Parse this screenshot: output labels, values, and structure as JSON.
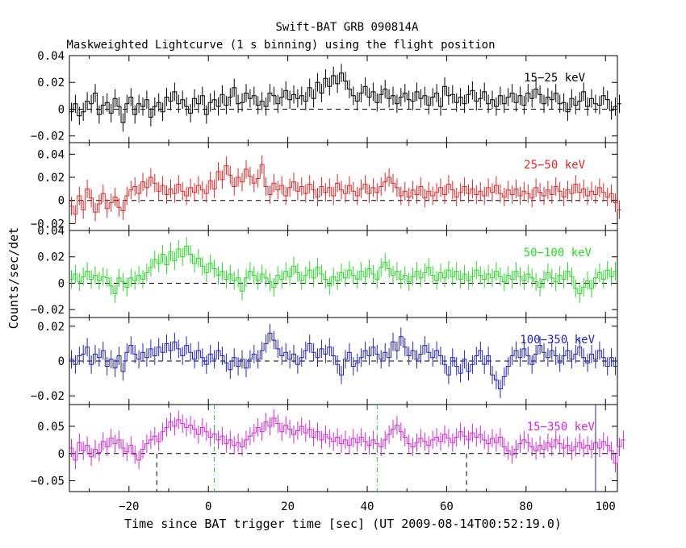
{
  "chart_data": {
    "type": "line",
    "title": "Swift-BAT GRB 090814A",
    "subtitle": "Maskweighted Lightcurve (1 s binning) using the flight position",
    "xlabel": "Time since BAT trigger time [sec] (UT 2009-08-14T00:52:19.0)",
    "ylabel": "Counts/sec/det",
    "xlim": [
      -35,
      103
    ],
    "xticks": [
      -20,
      0,
      20,
      40,
      60,
      80,
      100
    ],
    "xtick_labels": [
      "−20",
      "0",
      "20",
      "40",
      "60",
      "80",
      "100"
    ],
    "grid": false,
    "panels": [
      {
        "name": "15−25 keV",
        "color": "#000000",
        "ylim": [
          -0.025,
          0.04
        ],
        "yticks": [
          -0.02,
          0,
          0.02,
          0.04
        ],
        "ytick_labels": [
          "−0.02",
          "0",
          "0.02",
          "0.04"
        ],
        "x_start": -35,
        "bin": 1,
        "values": [
          -0.002,
          0.004,
          -0.005,
          -0.002,
          0.006,
          0.004,
          0.012,
          -0.004,
          0.003,
          0.005,
          -0.003,
          0.008,
          0.002,
          -0.01,
          0.004,
          0.009,
          -0.004,
          0.004,
          0.002,
          0.007,
          -0.006,
          0.002,
          0.005,
          -0.002,
          0.009,
          0.006,
          0.013,
          0.004,
          0.007,
          0.002,
          -0.003,
          0.008,
          0.004,
          0.01,
          -0.004,
          0.005,
          0.007,
          0.002,
          0.011,
          0.003,
          0.009,
          0.016,
          0.004,
          0.005,
          0.012,
          0.008,
          0.01,
          0.003,
          0.006,
          0.002,
          0.012,
          0.01,
          0.004,
          0.009,
          0.014,
          0.007,
          0.011,
          0.008,
          0.01,
          0.006,
          0.016,
          0.008,
          0.02,
          0.012,
          0.023,
          0.017,
          0.025,
          0.019,
          0.027,
          0.021,
          0.015,
          0.01,
          0.006,
          0.012,
          0.017,
          0.009,
          0.013,
          0.005,
          0.011,
          0.015,
          0.008,
          0.01,
          0.004,
          0.009,
          0.012,
          0.007,
          0.006,
          0.013,
          0.008,
          0.01,
          0.003,
          0.009,
          0.012,
          0.002,
          0.017,
          0.01,
          0.011,
          0.005,
          0.009,
          0.004,
          0.011,
          0.014,
          0.006,
          0.008,
          0.013,
          0.004,
          0.007,
          0.002,
          0.01,
          0.004,
          0.009,
          0.012,
          0.005,
          0.01,
          0.003,
          0.012,
          0.008,
          0.015,
          0.011,
          0.004,
          0.009,
          0.007,
          0.012,
          0.004,
          0.005,
          -0.002,
          0.008,
          0.003,
          0.006,
          0.013,
          0.002,
          0.008,
          0.004,
          0.003,
          0.01,
          0.007,
          -0.001,
          0.002,
          0.004
        ]
      },
      {
        "name": "25−50 keV",
        "color": "#ee2222",
        "ylim": [
          -0.026,
          0.05
        ],
        "yticks": [
          -0.02,
          0,
          0.02,
          0.04
        ],
        "ytick_labels": [
          "−0.02",
          "0",
          "0.02",
          "0.04"
        ],
        "x_start": -35,
        "bin": 1,
        "values": [
          -0.005,
          -0.012,
          0.004,
          -0.008,
          0.01,
          0.002,
          -0.01,
          -0.003,
          0.006,
          -0.007,
          -0.002,
          0.003,
          -0.006,
          -0.009,
          0.004,
          0.009,
          0.012,
          0.006,
          0.016,
          0.011,
          0.02,
          0.015,
          0.008,
          0.013,
          0.005,
          0.01,
          0.006,
          0.014,
          0.008,
          0.004,
          0.011,
          0.007,
          0.013,
          0.009,
          0.006,
          0.017,
          0.01,
          0.025,
          0.018,
          0.03,
          0.022,
          0.012,
          0.02,
          0.016,
          0.027,
          0.021,
          0.015,
          0.019,
          0.031,
          0.012,
          0.005,
          0.015,
          0.009,
          0.013,
          0.004,
          0.011,
          0.016,
          0.008,
          0.012,
          0.006,
          0.014,
          0.009,
          0.003,
          0.012,
          0.007,
          0.011,
          0.004,
          0.015,
          0.009,
          0.006,
          0.013,
          0.008,
          0.004,
          0.01,
          0.014,
          0.006,
          0.011,
          0.007,
          0.012,
          0.016,
          0.02,
          0.015,
          0.011,
          0.004,
          0.008,
          0.003,
          0.009,
          0.005,
          0.012,
          0.002,
          0.008,
          0.004,
          0.007,
          0.011,
          0.005,
          0.014,
          0.009,
          0.003,
          0.007,
          0.012,
          0.006,
          0.01,
          0.005,
          0.008,
          0.004,
          0.011,
          0.007,
          0.013,
          0.006,
          0.003,
          0.009,
          0.005,
          0.01,
          0.004,
          0.008,
          0.006,
          0.002,
          0.011,
          0.007,
          0.004,
          0.009,
          0.005,
          0.012,
          0.008,
          0.003,
          0.009,
          0.006,
          0.014,
          0.007,
          0.01,
          0.004,
          0.008,
          0.005,
          0.011,
          0.007,
          0.003,
          0.006,
          -0.002,
          -0.008
        ]
      },
      {
        "name": "50−100 keV",
        "color": "#22dd22",
        "ylim": [
          -0.026,
          0.04
        ],
        "yticks": [
          -0.02,
          0,
          0.02,
          0.04
        ],
        "ytick_labels": [
          "−0.02",
          "0",
          "0.02",
          "0.04"
        ],
        "x_start": -35,
        "bin": 1,
        "values": [
          0.003,
          0.007,
          0.001,
          0.005,
          0.009,
          0.003,
          0.006,
          0.002,
          0.005,
          0.004,
          -0.002,
          -0.008,
          0.004,
          0.001,
          -0.003,
          0.004,
          0.002,
          0.006,
          0.003,
          0.008,
          0.012,
          0.018,
          0.015,
          0.022,
          0.014,
          0.024,
          0.017,
          0.026,
          0.02,
          0.028,
          0.022,
          0.015,
          0.019,
          0.013,
          0.008,
          0.015,
          0.011,
          0.006,
          0.009,
          0.003,
          0.007,
          0.002,
          0.004,
          -0.006,
          0.004,
          0.009,
          0.006,
          0.002,
          0.007,
          0.004,
          0.001,
          -0.003,
          0.006,
          0.003,
          0.009,
          0.005,
          0.013,
          0.008,
          0.002,
          0.006,
          0.01,
          0.004,
          0.012,
          0.007,
          0.003,
          -0.002,
          0.005,
          0.002,
          0.008,
          0.004,
          0.01,
          0.006,
          0.003,
          0.009,
          0.005,
          0.011,
          0.007,
          0.003,
          0.012,
          0.016,
          0.011,
          0.006,
          0.009,
          0.003,
          0.006,
          0.001,
          0.005,
          0.009,
          0.004,
          0.008,
          0.012,
          0.006,
          0.002,
          0.008,
          0.004,
          0.01,
          0.005,
          0.009,
          0.003,
          0.007,
          0.002,
          0.005,
          0.01,
          0.006,
          0.003,
          0.007,
          0.004,
          0.009,
          0.005,
          0.001,
          0.006,
          0.003,
          0.009,
          0.005,
          0.002,
          0.007,
          0.004,
          0.001,
          -0.003,
          0.003,
          0.008,
          0.004,
          0.001,
          0.006,
          0.003,
          0.009,
          0.005,
          -0.004,
          -0.008,
          -0.003,
          0.002,
          -0.004,
          0.004,
          0.008,
          0.003,
          0.01,
          0.005,
          0.009
        ]
      },
      {
        "name": "100−350 keV",
        "color": "#2222cc",
        "ylim": [
          -0.025,
          0.025
        ],
        "yticks": [
          -0.02,
          0,
          0.02
        ],
        "ytick_labels": [
          "−0.02",
          "0",
          "0.02"
        ],
        "x_start": -35,
        "bin": 1,
        "values": [
          0.001,
          -0.002,
          0.003,
          0.004,
          0.008,
          -0.002,
          0.004,
          0.002,
          0.006,
          -0.003,
          0.001,
          -0.004,
          0.003,
          -0.006,
          0.005,
          0.009,
          0.004,
          0.001,
          0.005,
          0.002,
          0.007,
          0.003,
          0.008,
          0.005,
          0.01,
          0.006,
          0.011,
          0.007,
          0.003,
          0.009,
          0.005,
          0.001,
          0.006,
          0.002,
          -0.002,
          0.004,
          0.001,
          0.006,
          0.003,
          -0.001,
          -0.005,
          0.002,
          -0.003,
          0.001,
          -0.004,
          0.001,
          0.004,
          0.001,
          0.006,
          0.01,
          0.016,
          0.012,
          0.007,
          0.003,
          0.005,
          0.001,
          0.004,
          -0.002,
          0.002,
          0.006,
          0.01,
          0.005,
          0.002,
          0.007,
          0.004,
          0.008,
          0.003,
          -0.002,
          -0.008,
          0.001,
          0.005,
          -0.003,
          -0.001,
          0.002,
          0.006,
          0.003,
          0.008,
          0.004,
          0.001,
          0.005,
          0.002,
          0.011,
          0.006,
          0.014,
          0.008,
          0.003,
          0.006,
          0.001,
          0.004,
          0.009,
          0.005,
          0.002,
          0.006,
          0.003,
          -0.002,
          -0.008,
          0.002,
          -0.003,
          -0.007,
          0.001,
          -0.006,
          -0.002,
          0.003,
          0.006,
          -0.002,
          0.003,
          -0.008,
          -0.011,
          -0.016,
          -0.009,
          -0.003,
          0.003,
          0.006,
          0.002,
          0.007,
          0.003,
          -0.002,
          0.004,
          0.009,
          0.005,
          0.002,
          0.006,
          0.003,
          -0.001,
          0.003,
          0.006,
          0.001,
          0.004,
          0.008,
          0.002,
          -0.001,
          0.004,
          0.001,
          0.006,
          0.002,
          -0.003,
          0.002,
          -0.003
        ]
      },
      {
        "name": "15−350 keV",
        "color": "#dd22dd",
        "ylim": [
          -0.07,
          0.09
        ],
        "yticks": [
          -0.05,
          0,
          0.05
        ],
        "ytick_labels": [
          "−0.05",
          "0",
          "0.05"
        ],
        "x_start": -35,
        "bin": 1,
        "values": [
          0.01,
          -0.012,
          0.02,
          0.005,
          0.015,
          -0.006,
          0.008,
          0.002,
          0.022,
          0.012,
          0.028,
          0.018,
          0.025,
          0.01,
          0.003,
          0.015,
          -0.002,
          -0.012,
          0.008,
          0.018,
          0.025,
          0.032,
          0.022,
          0.04,
          0.048,
          0.058,
          0.05,
          0.062,
          0.055,
          0.048,
          0.052,
          0.045,
          0.035,
          0.048,
          0.04,
          0.03,
          0.036,
          0.025,
          0.032,
          0.018,
          0.025,
          0.015,
          0.02,
          0.012,
          0.025,
          0.032,
          0.038,
          0.048,
          0.04,
          0.058,
          0.05,
          0.065,
          0.055,
          0.04,
          0.052,
          0.045,
          0.035,
          0.042,
          0.05,
          0.038,
          0.045,
          0.03,
          0.04,
          0.025,
          0.035,
          0.028,
          0.022,
          0.03,
          0.018,
          0.025,
          0.015,
          0.028,
          0.02,
          0.03,
          0.022,
          0.015,
          0.025,
          0.018,
          0.012,
          0.025,
          0.035,
          0.045,
          0.052,
          0.04,
          0.03,
          0.018,
          0.012,
          0.02,
          0.028,
          0.022,
          0.015,
          0.025,
          0.03,
          0.022,
          0.035,
          0.028,
          0.02,
          0.03,
          0.04,
          0.032,
          0.025,
          0.038,
          0.03,
          0.035,
          0.025,
          0.018,
          0.028,
          0.02,
          0.03,
          0.012,
          0.005,
          -0.002,
          0.008,
          0.018,
          0.025,
          0.02,
          0.012,
          0.005,
          0.015,
          0.008,
          0.02,
          0.012,
          0.025,
          0.018,
          0.01,
          0.015,
          0.005,
          0.012,
          0.02,
          0.01,
          0.015,
          0.008,
          0.02,
          0.01,
          0.022,
          0.015,
          0.005,
          -0.018,
          0.012,
          0.025
        ]
      }
    ],
    "vertical_markers": [
      {
        "x": -13,
        "style": "black-dashed",
        "panel": "15−350 keV"
      },
      {
        "x": 65,
        "style": "black-dashed",
        "panel": "15−350 keV"
      },
      {
        "x": 1.5,
        "style": "green-dashdot",
        "panel": "15−350 keV"
      },
      {
        "x": 42.5,
        "style": "green-dashdot",
        "panel": "15−350 keV"
      },
      {
        "x": 97.5,
        "style": "blue-solid",
        "panel": "15−350 keV"
      }
    ]
  }
}
